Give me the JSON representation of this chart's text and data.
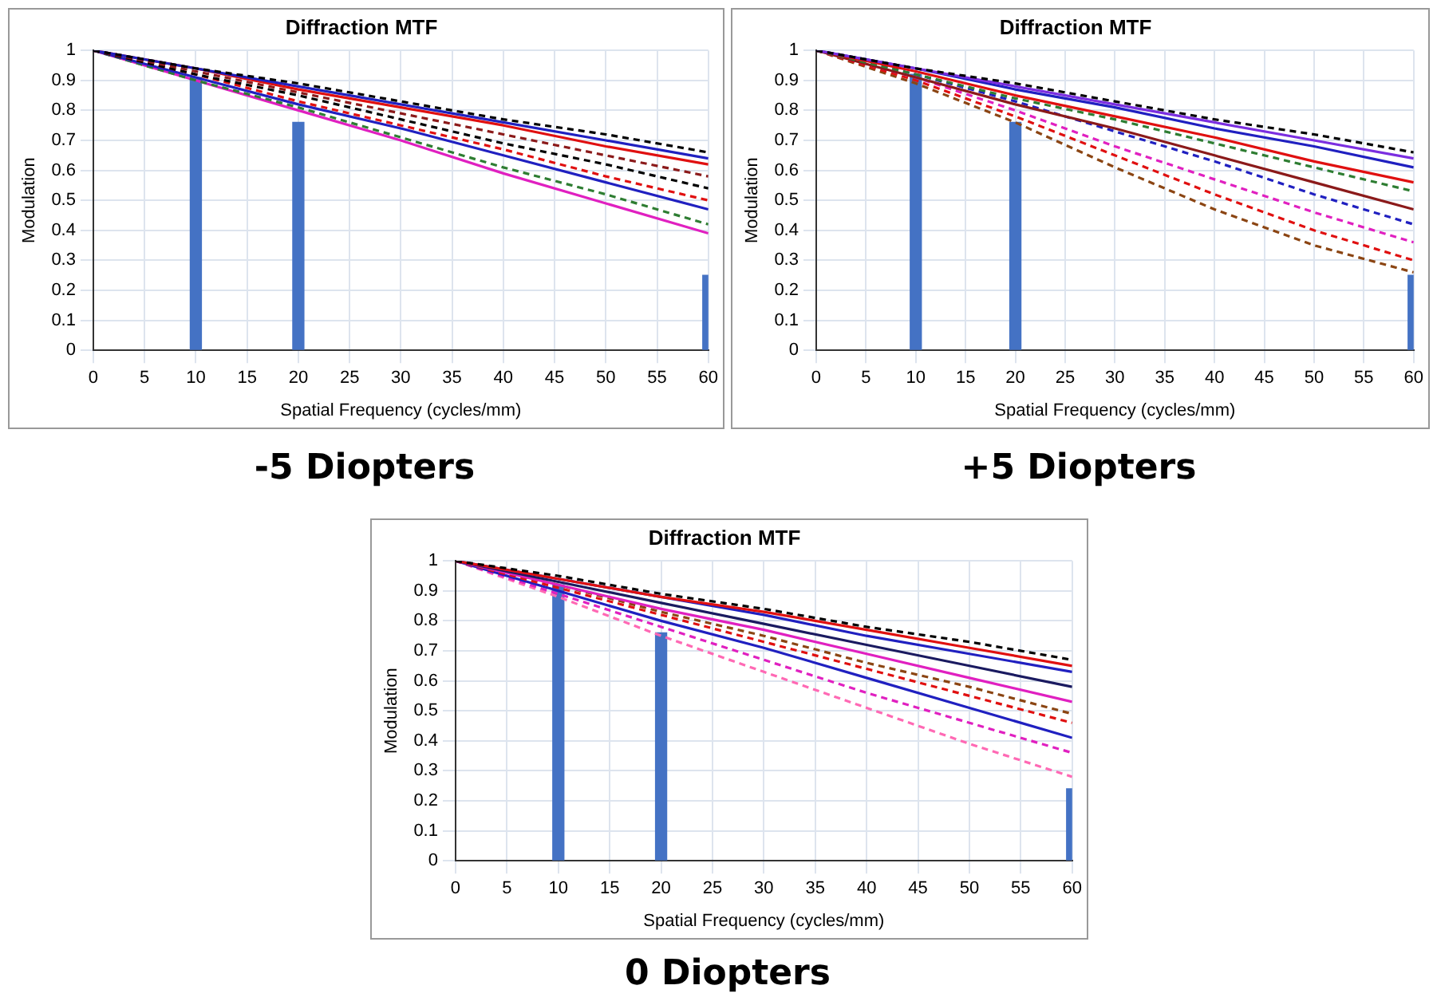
{
  "chart_data": [
    {
      "type": "line",
      "title": "Diffraction MTF",
      "xlabel": "Spatial Frequency (cycles/mm)",
      "ylabel": "Modulation",
      "annotations": [
        "-5 Diopters"
      ],
      "x": [
        0,
        10,
        20,
        30,
        40,
        50,
        60
      ],
      "xlim": [
        0,
        60
      ],
      "xticks": [
        0,
        5,
        10,
        15,
        20,
        25,
        30,
        35,
        40,
        45,
        50,
        55,
        60
      ],
      "ylim": [
        0,
        1
      ],
      "yticks": [
        0,
        0.1,
        0.2,
        0.3,
        0.4,
        0.5,
        0.6,
        0.7,
        0.8,
        0.9,
        1
      ],
      "grid": true,
      "legend": false,
      "marker": "none",
      "series": [
        {
          "type": "bar",
          "color": "#4472c4",
          "x": [
            10,
            20,
            60
          ],
          "values": [
            0.91,
            0.76,
            0.25
          ]
        },
        {
          "color": "#000000",
          "line_style": "dashed",
          "values": [
            1,
            0.94,
            0.89,
            0.83,
            0.77,
            0.72,
            0.66
          ]
        },
        {
          "color": "#2020c0",
          "line_style": "solid",
          "values": [
            1,
            0.94,
            0.88,
            0.82,
            0.76,
            0.7,
            0.64
          ]
        },
        {
          "color": "#e01010",
          "line_style": "solid",
          "values": [
            1,
            0.94,
            0.87,
            0.81,
            0.75,
            0.68,
            0.62
          ]
        },
        {
          "color": "#8b1a1a",
          "line_style": "dashed",
          "values": [
            1,
            0.93,
            0.86,
            0.79,
            0.72,
            0.65,
            0.58
          ]
        },
        {
          "color": "#000000",
          "line_style": "dashed",
          "values": [
            1,
            0.92,
            0.85,
            0.77,
            0.69,
            0.62,
            0.54
          ]
        },
        {
          "color": "#e01010",
          "line_style": "dashed",
          "values": [
            1,
            0.92,
            0.83,
            0.75,
            0.67,
            0.58,
            0.5
          ]
        },
        {
          "color": "#2020c0",
          "line_style": "solid",
          "values": [
            1,
            0.91,
            0.82,
            0.74,
            0.65,
            0.56,
            0.47
          ]
        },
        {
          "color": "#2e7d32",
          "line_style": "dashed",
          "values": [
            1,
            0.9,
            0.81,
            0.71,
            0.61,
            0.52,
            0.42
          ]
        },
        {
          "color": "#e020c0",
          "line_style": "solid",
          "values": [
            1,
            0.9,
            0.8,
            0.7,
            0.59,
            0.49,
            0.39
          ]
        }
      ]
    },
    {
      "type": "line",
      "title": "Diffraction MTF",
      "xlabel": "Spatial Frequency (cycles/mm)",
      "ylabel": "Modulation",
      "annotations": [
        "+5 Diopters"
      ],
      "x": [
        0,
        10,
        20,
        30,
        40,
        50,
        60
      ],
      "xlim": [
        0,
        60
      ],
      "xticks": [
        0,
        5,
        10,
        15,
        20,
        25,
        30,
        35,
        40,
        45,
        50,
        55,
        60
      ],
      "ylim": [
        0,
        1
      ],
      "yticks": [
        0,
        0.1,
        0.2,
        0.3,
        0.4,
        0.5,
        0.6,
        0.7,
        0.8,
        0.9,
        1
      ],
      "grid": true,
      "legend": false,
      "marker": "none",
      "series": [
        {
          "type": "bar",
          "color": "#4472c4",
          "x": [
            10,
            20,
            60
          ],
          "values": [
            0.92,
            0.76,
            0.25
          ]
        },
        {
          "color": "#000000",
          "line_style": "dashed",
          "values": [
            1,
            0.94,
            0.89,
            0.83,
            0.77,
            0.72,
            0.66
          ]
        },
        {
          "color": "#7b2ee0",
          "line_style": "solid",
          "values": [
            1,
            0.94,
            0.88,
            0.82,
            0.76,
            0.7,
            0.64
          ]
        },
        {
          "color": "#2020c0",
          "line_style": "solid",
          "values": [
            1,
            0.94,
            0.87,
            0.81,
            0.74,
            0.68,
            0.61
          ]
        },
        {
          "color": "#e01010",
          "line_style": "solid",
          "values": [
            1,
            0.93,
            0.85,
            0.78,
            0.71,
            0.63,
            0.56
          ]
        },
        {
          "color": "#2e7d32",
          "line_style": "dashed",
          "values": [
            1,
            0.92,
            0.84,
            0.77,
            0.69,
            0.61,
            0.53
          ]
        },
        {
          "color": "#8b1a1a",
          "line_style": "solid",
          "values": [
            1,
            0.91,
            0.82,
            0.74,
            0.65,
            0.56,
            0.47
          ]
        },
        {
          "color": "#2020c0",
          "line_style": "dashed",
          "values": [
            1,
            0.92,
            0.83,
            0.73,
            0.63,
            0.52,
            0.42
          ]
        },
        {
          "color": "#e020c0",
          "line_style": "dashed",
          "values": [
            1,
            0.91,
            0.8,
            0.68,
            0.57,
            0.46,
            0.36
          ]
        },
        {
          "color": "#e01010",
          "line_style": "dashed",
          "values": [
            1,
            0.9,
            0.78,
            0.65,
            0.52,
            0.4,
            0.3
          ]
        },
        {
          "color": "#8b4513",
          "line_style": "dashed",
          "values": [
            1,
            0.89,
            0.76,
            0.61,
            0.47,
            0.35,
            0.26
          ]
        }
      ]
    },
    {
      "type": "line",
      "title": "Diffraction MTF",
      "xlabel": "Spatial Frequency (cycles/mm)",
      "ylabel": "Modulation",
      "annotations": [
        "0 Diopters"
      ],
      "x": [
        0,
        10,
        20,
        30,
        40,
        50,
        60
      ],
      "xlim": [
        0,
        60
      ],
      "xticks": [
        0,
        5,
        10,
        15,
        20,
        25,
        30,
        35,
        40,
        45,
        50,
        55,
        60
      ],
      "ylim": [
        0,
        1
      ],
      "yticks": [
        0,
        0.1,
        0.2,
        0.3,
        0.4,
        0.5,
        0.6,
        0.7,
        0.8,
        0.9,
        1
      ],
      "grid": true,
      "legend": false,
      "marker": "none",
      "series": [
        {
          "type": "bar",
          "color": "#4472c4",
          "x": [
            10,
            20,
            60
          ],
          "values": [
            0.92,
            0.76,
            0.24
          ]
        },
        {
          "color": "#000000",
          "line_style": "dashed",
          "values": [
            1,
            0.95,
            0.89,
            0.84,
            0.78,
            0.73,
            0.67
          ]
        },
        {
          "color": "#e01010",
          "line_style": "solid",
          "values": [
            1,
            0.94,
            0.88,
            0.83,
            0.77,
            0.71,
            0.65
          ]
        },
        {
          "color": "#2020c0",
          "line_style": "solid",
          "values": [
            1,
            0.94,
            0.88,
            0.82,
            0.75,
            0.69,
            0.63
          ]
        },
        {
          "color": "#1a1a60",
          "line_style": "solid",
          "values": [
            1,
            0.93,
            0.86,
            0.79,
            0.72,
            0.65,
            0.58
          ]
        },
        {
          "color": "#e020c0",
          "line_style": "solid",
          "values": [
            1,
            0.92,
            0.84,
            0.77,
            0.69,
            0.61,
            0.53
          ]
        },
        {
          "color": "#8b4513",
          "line_style": "dashed",
          "values": [
            1,
            0.92,
            0.83,
            0.75,
            0.66,
            0.58,
            0.49
          ]
        },
        {
          "color": "#e01010",
          "line_style": "dashed",
          "values": [
            1,
            0.91,
            0.82,
            0.73,
            0.64,
            0.55,
            0.46
          ]
        },
        {
          "color": "#2020c0",
          "line_style": "solid",
          "values": [
            1,
            0.9,
            0.8,
            0.71,
            0.61,
            0.51,
            0.41
          ]
        },
        {
          "color": "#e020c0",
          "line_style": "dashed",
          "values": [
            1,
            0.89,
            0.78,
            0.67,
            0.56,
            0.46,
            0.36
          ]
        },
        {
          "color": "#ff69b4",
          "line_style": "dashed",
          "values": [
            1,
            0.88,
            0.75,
            0.63,
            0.51,
            0.39,
            0.28
          ]
        }
      ]
    }
  ]
}
